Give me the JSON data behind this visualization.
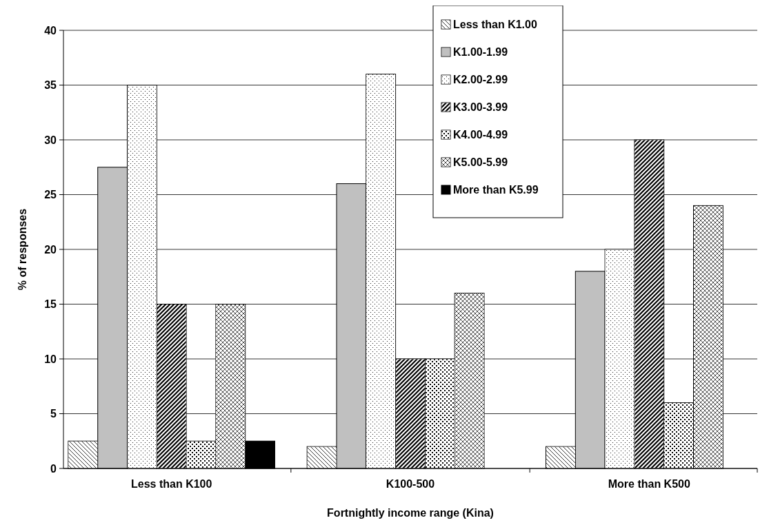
{
  "chart_data": {
    "type": "bar",
    "xlabel": "Fortnightly income range (Kina)",
    "ylabel": "% of responses",
    "categories": [
      "Less than K100",
      "K100-500",
      "More than K500"
    ],
    "series": [
      {
        "name": "Less than K1.00",
        "color": "#ffffff",
        "values": [
          2.5,
          2,
          2
        ]
      },
      {
        "name": "K1.00-1.99",
        "color": "#c0c0c0",
        "values": [
          27.5,
          26,
          18
        ]
      },
      {
        "name": "K2.00-2.99",
        "color": "#ffffff",
        "values": [
          35,
          36,
          20
        ]
      },
      {
        "name": "K3.00-3.99",
        "color": "#ffffff",
        "values": [
          15,
          10,
          30
        ]
      },
      {
        "name": "K4.00-4.99",
        "color": "#ffffff",
        "values": [
          2.5,
          10,
          6
        ]
      },
      {
        "name": "K5.00-5.99",
        "color": "#ffffff",
        "values": [
          15,
          16,
          24
        ]
      },
      {
        "name": "More than K5.99",
        "color": "#000000",
        "values": [
          2.5,
          0,
          0
        ]
      }
    ],
    "ylim": [
      0,
      40
    ],
    "yticks": [
      0,
      5,
      10,
      15,
      20,
      25,
      30,
      35,
      40
    ],
    "grid": "y",
    "legend": "top right"
  }
}
